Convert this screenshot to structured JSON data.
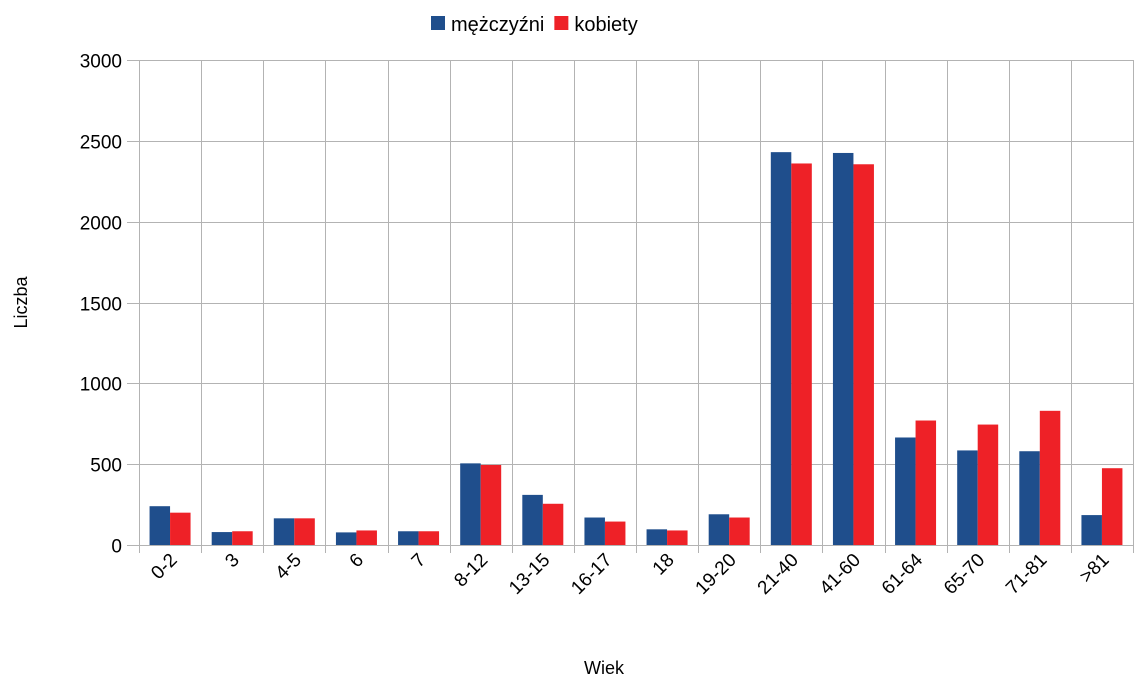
{
  "chart_data": {
    "type": "bar",
    "title": "",
    "xlabel": "Wiek",
    "ylabel": "Liczba",
    "ylim": [
      0,
      3000
    ],
    "yticks": [
      0,
      500,
      1000,
      1500,
      2000,
      2500,
      3000
    ],
    "grid": true,
    "legend_position": "top-center",
    "categories": [
      "0-2",
      "3",
      "4-5",
      "6",
      "7",
      "8-12",
      "13-15",
      "16-17",
      "18",
      "19-20",
      "21-40",
      "41-60",
      "61-64",
      "65-70",
      "71-81",
      ">81"
    ],
    "series": [
      {
        "name": "mężczyźni",
        "color": "#1f4e8c",
        "values": [
          240,
          80,
          165,
          78,
          85,
          505,
          310,
          170,
          97,
          190,
          2430,
          2425,
          665,
          585,
          580,
          185
        ]
      },
      {
        "name": "kobiety",
        "color": "#ee2127",
        "values": [
          200,
          85,
          165,
          90,
          85,
          495,
          255,
          145,
          90,
          170,
          2360,
          2355,
          770,
          745,
          830,
          475
        ]
      }
    ]
  }
}
